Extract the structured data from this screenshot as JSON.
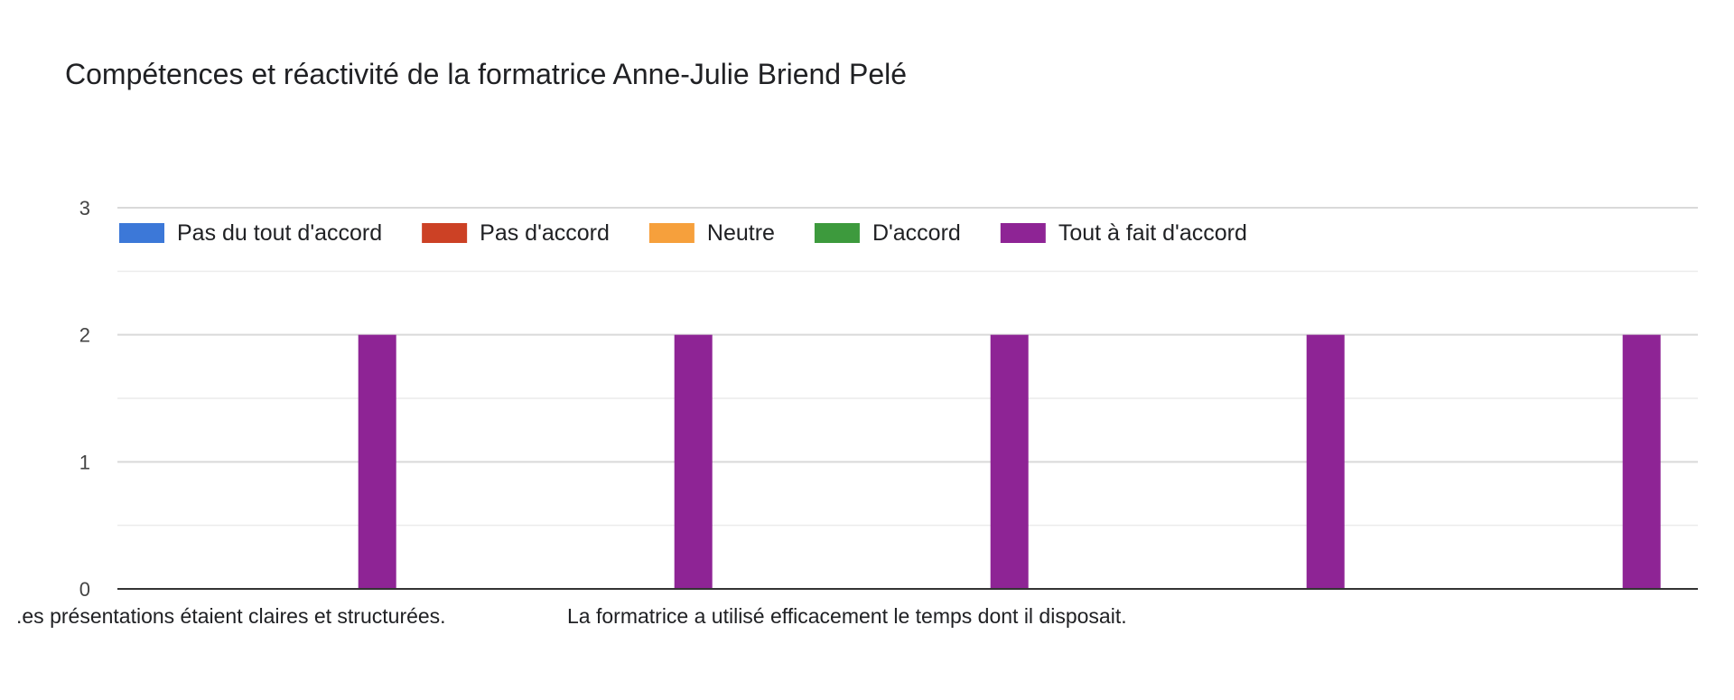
{
  "chart_data": {
    "type": "bar",
    "title": "Compétences et réactivité de la formatrice Anne-Julie Briend Pelé",
    "xlabel": "",
    "ylabel": "",
    "ylim": [
      0,
      3
    ],
    "yticks": [
      "0",
      "1",
      "2",
      "3"
    ],
    "grid": true,
    "legend_position": "top",
    "categories": [
      "Les présentations étaient claires et structurées.",
      "La formatrice a utilisé efficacement le temps dont il disposait.",
      "",
      "",
      ""
    ],
    "category_labels_visible": [
      ".es présentations étaient claires et structurées.",
      "La formatrice a utilisé efficacement le temps dont il disposait."
    ],
    "series": [
      {
        "name": "Pas du tout d'accord",
        "color": "#3c78d8",
        "values": [
          0,
          0,
          0,
          0,
          0
        ]
      },
      {
        "name": "Pas d'accord",
        "color": "#cc4125",
        "values": [
          0,
          0,
          0,
          0,
          0
        ]
      },
      {
        "name": "Neutre",
        "color": "#f6a03c",
        "values": [
          0,
          0,
          0,
          0,
          0
        ]
      },
      {
        "name": "D'accord",
        "color": "#3d9a3d",
        "values": [
          0,
          0,
          0,
          0,
          0
        ]
      },
      {
        "name": "Tout à fait d'accord",
        "color": "#8e2495",
        "values": [
          2,
          2,
          2,
          2,
          2
        ]
      }
    ]
  }
}
